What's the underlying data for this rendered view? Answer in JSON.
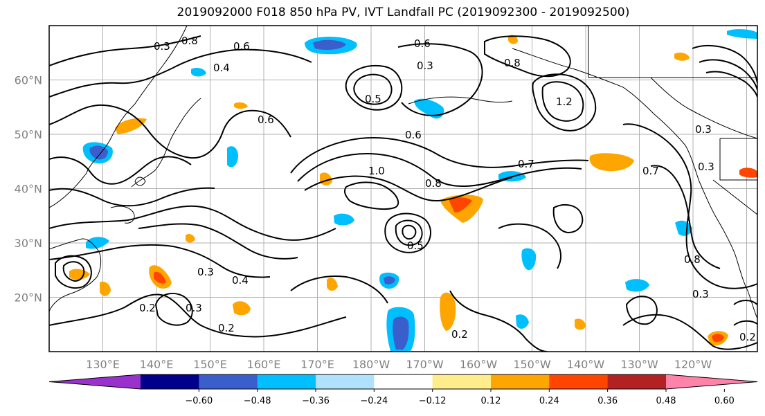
{
  "title": "2019092000 F018 850 hPa PV, IVT Landfall PC (2019092300 - 2019092500)",
  "map": {
    "lat_ticks": [
      {
        "label": "20°N",
        "lat": 20
      },
      {
        "label": "30°N",
        "lat": 30
      },
      {
        "label": "40°N",
        "lat": 40
      },
      {
        "label": "50°N",
        "lat": 50
      },
      {
        "label": "60°N",
        "lat": 60
      }
    ],
    "lon_ticks": [
      {
        "label": "130°E",
        "lon": 130
      },
      {
        "label": "140°E",
        "lon": 140
      },
      {
        "label": "150°E",
        "lon": 150
      },
      {
        "label": "160°E",
        "lon": 160
      },
      {
        "label": "170°E",
        "lon": 170
      },
      {
        "label": "180°W",
        "lon": 180
      },
      {
        "label": "170°W",
        "lon": 190
      },
      {
        "label": "160°W",
        "lon": 200
      },
      {
        "label": "150°W",
        "lon": 210
      },
      {
        "label": "140°W",
        "lon": 220
      },
      {
        "label": "130°W",
        "lon": 230
      },
      {
        "label": "120°W",
        "lon": 240
      }
    ],
    "contour_labels": [
      "0.8",
      "0.6",
      "0.4",
      "0.3",
      "0.6",
      "0.5",
      "0.3",
      "0.8",
      "1.2",
      "0.6",
      "1.0",
      "0.8",
      "0.7",
      "0.6",
      "0.7",
      "0.3",
      "0.2",
      "0.3",
      "0.2",
      "0.4",
      "0.3",
      "0.2",
      "0.2",
      "0.8",
      "0.5",
      "0.3",
      "0.3"
    ]
  },
  "colorbar": {
    "colors": [
      "#9932cc",
      "#00008b",
      "#3a5fcd",
      "#00bfff",
      "#b0e2ff",
      "#ffffff",
      "#ffec8b",
      "#ffa500",
      "#ff4500",
      "#b22222",
      "#ff82ab"
    ],
    "ticks": [
      "−0.60",
      "−0.48",
      "−0.36",
      "−0.24",
      "−0.12",
      "0.12",
      "0.24",
      "0.36",
      "0.48",
      "0.60"
    ]
  }
}
